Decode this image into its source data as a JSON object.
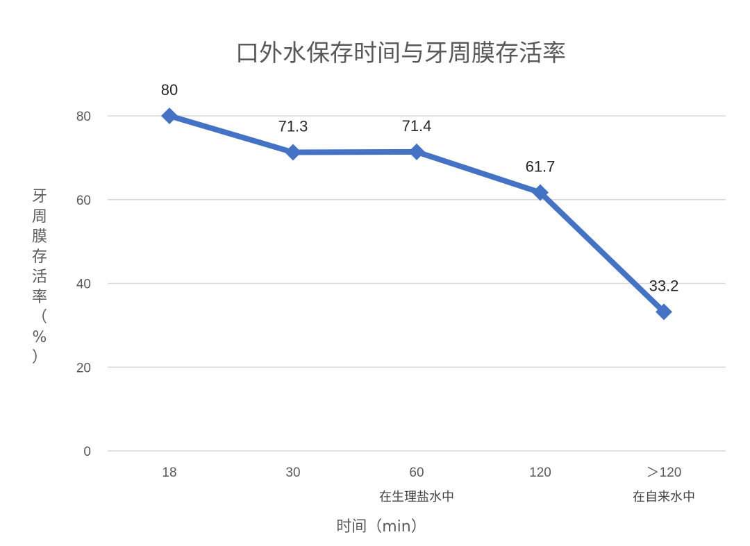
{
  "chart_data": {
    "type": "line",
    "title": "口外水保存时间与牙周膜存活率",
    "xlabel": "时间（min）",
    "ylabel": "牙周膜存活率（%）",
    "categories": [
      "18",
      "30",
      "60",
      "120",
      "＞120"
    ],
    "category_sublabels": [
      {
        "text": "在生理盐水中",
        "span": [
          1,
          3
        ]
      },
      {
        "text": "在自来水中",
        "span": [
          4,
          4
        ]
      }
    ],
    "series": [
      {
        "values": [
          80,
          71.3,
          71.4,
          61.7,
          33.2
        ],
        "color": "#4472C4",
        "marker": "diamond"
      }
    ],
    "data_labels": [
      "80",
      "71.3",
      "71.4",
      "61.7",
      "33.2"
    ],
    "yticks": [
      "0",
      "20",
      "40",
      "60",
      "80"
    ],
    "ylim": [
      0,
      80
    ],
    "grid": true,
    "legend": "none"
  }
}
